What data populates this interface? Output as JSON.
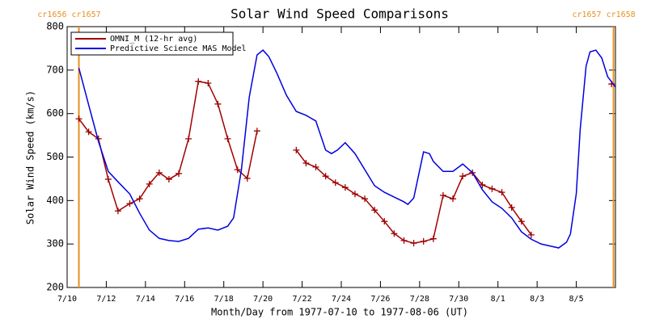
{
  "chart_data": {
    "type": "line",
    "title": "Solar Wind Speed Comparisons",
    "xlabel": "Month/Day from 1977-07-10 to 1977-08-06 (UT)",
    "ylabel": "Solar Wind Speed (km/s)",
    "xlim": [
      0,
      28
    ],
    "xticks": [
      {
        "value": 0,
        "label": "7/10"
      },
      {
        "value": 2,
        "label": "7/12"
      },
      {
        "value": 4,
        "label": "7/14"
      },
      {
        "value": 6,
        "label": "7/16"
      },
      {
        "value": 8,
        "label": "7/18"
      },
      {
        "value": 10,
        "label": "7/20"
      },
      {
        "value": 12,
        "label": "7/22"
      },
      {
        "value": 14,
        "label": "7/24"
      },
      {
        "value": 16,
        "label": "7/26"
      },
      {
        "value": 18,
        "label": "7/28"
      },
      {
        "value": 20,
        "label": "7/30"
      },
      {
        "value": 22,
        "label": "8/1"
      },
      {
        "value": 24,
        "label": "8/3"
      },
      {
        "value": 26,
        "label": "8/5"
      }
    ],
    "ylim": [
      200,
      800
    ],
    "yticks": [
      200,
      300,
      400,
      500,
      600,
      700,
      800
    ],
    "legend": "upper left",
    "annotations": [
      {
        "text": "cr1656 cr1657",
        "x": 0.6,
        "color": "#e89020"
      },
      {
        "text": "cr1657 cr1658",
        "x": 27.9,
        "color": "#e89020"
      }
    ],
    "series": [
      {
        "name": "OMNI_M (12-hr avg)",
        "color": "#a00000",
        "marker": "+",
        "x": [
          0.6,
          1.1,
          1.6,
          2.1,
          2.6,
          3.2,
          3.7,
          4.2,
          4.7,
          5.2,
          5.7,
          6.2,
          6.7,
          7.2,
          7.7,
          8.2,
          8.7,
          9.2,
          9.7,
          null,
          11.7,
          12.2,
          12.7,
          13.2,
          13.7,
          14.2,
          14.7,
          15.2,
          15.7,
          16.2,
          16.7,
          17.2,
          17.7,
          18.2,
          18.7,
          19.2,
          19.7,
          20.2,
          20.7,
          21.2,
          21.7,
          22.2,
          22.7,
          23.2,
          23.7,
          null,
          27.8
        ],
        "values": [
          588,
          558,
          542,
          449,
          376,
          393,
          404,
          438,
          464,
          449,
          462,
          542,
          674,
          670,
          622,
          542,
          471,
          451,
          560,
          null,
          516,
          486,
          477,
          456,
          441,
          430,
          415,
          404,
          378,
          352,
          324,
          308,
          302,
          306,
          312,
          412,
          404,
          456,
          464,
          436,
          427,
          419,
          384,
          352,
          321,
          null,
          668
        ]
      },
      {
        "name": "Predictive Science MAS Model",
        "color": "#0000e0",
        "x": [
          0.6,
          1.1,
          1.6,
          2.1,
          2.6,
          3.2,
          3.7,
          4.2,
          4.7,
          5.2,
          5.7,
          6.2,
          6.7,
          7.2,
          7.7,
          8.2,
          8.5,
          8.9,
          9.3,
          9.7,
          10.0,
          10.3,
          10.7,
          11.2,
          11.7,
          12.2,
          12.7,
          13.2,
          13.5,
          13.8,
          14.2,
          14.7,
          15.2,
          15.7,
          16.2,
          16.7,
          17.2,
          17.4,
          17.7,
          18.2,
          18.5,
          18.7,
          19.2,
          19.7,
          20.2,
          20.7,
          21.2,
          21.7,
          22.2,
          22.7,
          23.2,
          23.7,
          24.2,
          24.7,
          25.1,
          25.5,
          25.7,
          26.0,
          26.2,
          26.5,
          26.7,
          27.0,
          27.3,
          27.6,
          28.0
        ],
        "values": [
          705,
          620,
          536,
          467,
          443,
          415,
          371,
          332,
          313,
          308,
          306,
          313,
          334,
          337,
          332,
          341,
          360,
          471,
          638,
          735,
          746,
          731,
          694,
          642,
          605,
          596,
          583,
          516,
          508,
          516,
          533,
          508,
          471,
          434,
          419,
          408,
          397,
          391,
          406,
          512,
          508,
          490,
          467,
          467,
          484,
          464,
          425,
          397,
          382,
          360,
          328,
          311,
          300,
          295,
          291,
          304,
          323,
          416,
          564,
          709,
          742,
          746,
          728,
          685,
          661
        ]
      }
    ]
  }
}
